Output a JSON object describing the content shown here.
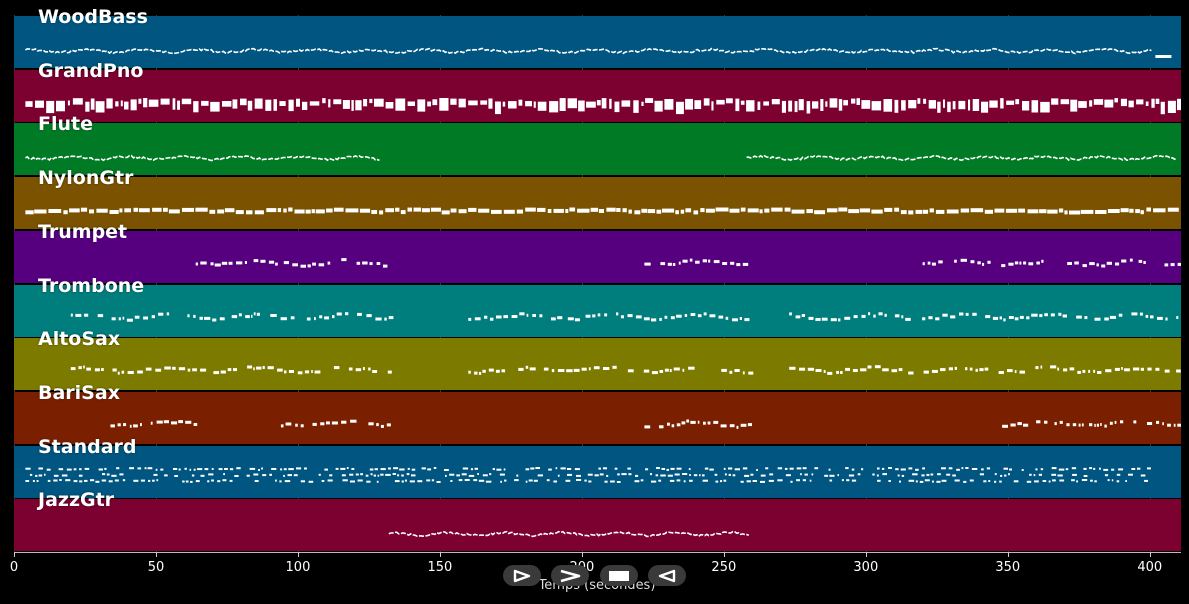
{
  "tracks": [
    {
      "name": "WoodBass",
      "color": "#005680",
      "style": "line",
      "segments": [
        [
          4,
          401
        ]
      ],
      "endMarker": true
    },
    {
      "name": "GrandPno",
      "color": "#7c0030",
      "style": "blocks",
      "segments": [
        [
          4,
          410
        ]
      ]
    },
    {
      "name": "Flute",
      "color": "#007a24",
      "style": "line",
      "segments": [
        [
          4,
          129
        ],
        [
          258,
          410
        ]
      ]
    },
    {
      "name": "NylonGtr",
      "color": "#7a5200",
      "style": "mixed",
      "segments": [
        [
          4,
          410
        ]
      ]
    },
    {
      "name": "Trumpet",
      "color": "#560080",
      "style": "dots",
      "segments": [
        [
          64,
          132
        ],
        [
          222,
          259
        ],
        [
          320,
          410
        ]
      ]
    },
    {
      "name": "Trombone",
      "color": "#007d7d",
      "style": "dots",
      "segments": [
        [
          20,
          132
        ],
        [
          160,
          259
        ],
        [
          273,
          410
        ]
      ]
    },
    {
      "name": "AltoSax",
      "color": "#7d7a00",
      "style": "dots",
      "segments": [
        [
          20,
          132
        ],
        [
          160,
          259
        ],
        [
          273,
          410
        ]
      ]
    },
    {
      "name": "BariSax",
      "color": "#7a2000",
      "style": "dots",
      "segments": [
        [
          34,
          64
        ],
        [
          94,
          132
        ],
        [
          222,
          259
        ],
        [
          348,
          410
        ]
      ]
    },
    {
      "name": "Standard",
      "color": "#005680",
      "style": "drums",
      "segments": [
        [
          4,
          400
        ]
      ]
    },
    {
      "name": "JazzGtr",
      "color": "#7c0030",
      "style": "line",
      "segments": [
        [
          132,
          259
        ]
      ]
    }
  ],
  "axis": {
    "label": "Temps (secondes)",
    "min": 0,
    "max": 411,
    "ticks": [
      "0",
      "50",
      "100",
      "150",
      "200",
      "250",
      "300",
      "350",
      "400"
    ],
    "tick_values": [
      0,
      50,
      100,
      150,
      200,
      250,
      300,
      350,
      400
    ]
  },
  "controls": [
    {
      "name": "play-button",
      "icon": "play-icon"
    },
    {
      "name": "fast-forward-button",
      "icon": "fast-forward-icon"
    },
    {
      "name": "stop-button",
      "icon": "stop-icon"
    },
    {
      "name": "rewind-button",
      "icon": "rewind-icon"
    }
  ]
}
